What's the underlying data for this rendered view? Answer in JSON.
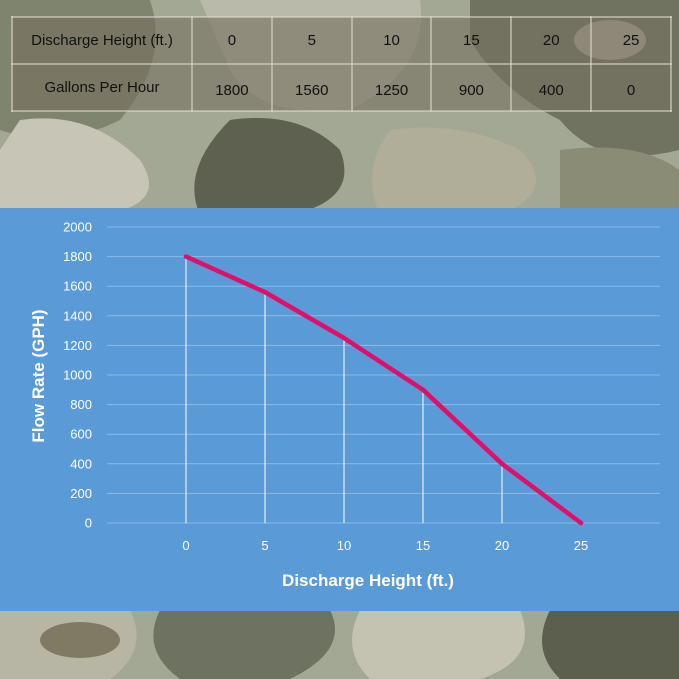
{
  "table": {
    "header_label": "Discharge Height (ft.)",
    "row_label": "Gallons Per Hour",
    "heights": [
      "0",
      "5",
      "10",
      "15",
      "20",
      "25"
    ],
    "flows": [
      "1800",
      "1560",
      "1250",
      "900",
      "400",
      "0"
    ]
  },
  "chart_data": {
    "type": "line",
    "x": [
      0,
      5,
      10,
      15,
      20,
      25
    ],
    "series": [
      {
        "values": [
          1800,
          1560,
          1250,
          900,
          400,
          0
        ]
      }
    ],
    "xlabel": "Discharge Height (ft.)",
    "ylabel": "Flow Rate (GPH)",
    "xlim": [
      -5,
      30
    ],
    "ylim": [
      0,
      2000
    ],
    "x_ticks": [
      0,
      5,
      10,
      15,
      20,
      25
    ],
    "y_ticks": [
      0,
      200,
      400,
      600,
      800,
      1000,
      1200,
      1400,
      1600,
      1800,
      2000
    ],
    "grid": "horizontal",
    "drop_lines": true,
    "colors": {
      "line": "#e0106a",
      "background": "#5a9ad6",
      "grid": "#8cbbe6",
      "text": "#ffffff"
    }
  }
}
